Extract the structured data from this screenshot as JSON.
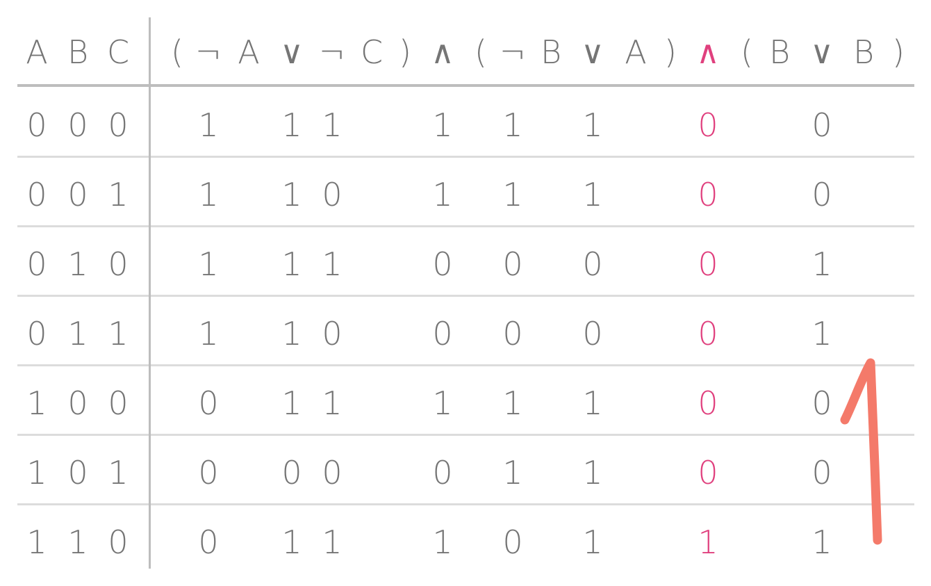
{
  "table": {
    "input_headers": [
      "A",
      "B",
      "C"
    ],
    "expression_tokens": [
      "(",
      "¬",
      "A",
      "∨",
      "¬",
      "C",
      ")",
      "∧",
      "(",
      "¬",
      "B",
      "∨",
      "A",
      ")",
      "∧",
      "(",
      "B",
      "∨",
      "B",
      ")"
    ],
    "main_operator_index": 14,
    "rows": [
      {
        "inputs": [
          "0",
          "0",
          "0"
        ],
        "values": [
          "1",
          "1",
          "1",
          "1",
          "1",
          "1",
          "0",
          "0"
        ]
      },
      {
        "inputs": [
          "0",
          "0",
          "1"
        ],
        "values": [
          "1",
          "1",
          "0",
          "1",
          "1",
          "1",
          "0",
          "0"
        ]
      },
      {
        "inputs": [
          "0",
          "1",
          "0"
        ],
        "values": [
          "1",
          "1",
          "1",
          "0",
          "0",
          "0",
          "0",
          "1"
        ]
      },
      {
        "inputs": [
          "0",
          "1",
          "1"
        ],
        "values": [
          "1",
          "1",
          "0",
          "0",
          "0",
          "0",
          "0",
          "1"
        ]
      },
      {
        "inputs": [
          "1",
          "0",
          "0"
        ],
        "values": [
          "0",
          "1",
          "1",
          "1",
          "1",
          "1",
          "0",
          "0"
        ]
      },
      {
        "inputs": [
          "1",
          "0",
          "1"
        ],
        "values": [
          "0",
          "0",
          "0",
          "0",
          "1",
          "1",
          "0",
          "0"
        ]
      },
      {
        "inputs": [
          "1",
          "1",
          "0"
        ],
        "values": [
          "0",
          "1",
          "1",
          "1",
          "0",
          "1",
          "1",
          "1"
        ]
      }
    ],
    "main_result_column_index": 6
  },
  "colors": {
    "text": "#757575",
    "highlight": "#e0407e",
    "annotation": "#f47a6a",
    "grid": "#dcdcdc",
    "header_rule": "#bdbdbd"
  },
  "annotation": {
    "shape": "hand-drawn upward arrow"
  }
}
